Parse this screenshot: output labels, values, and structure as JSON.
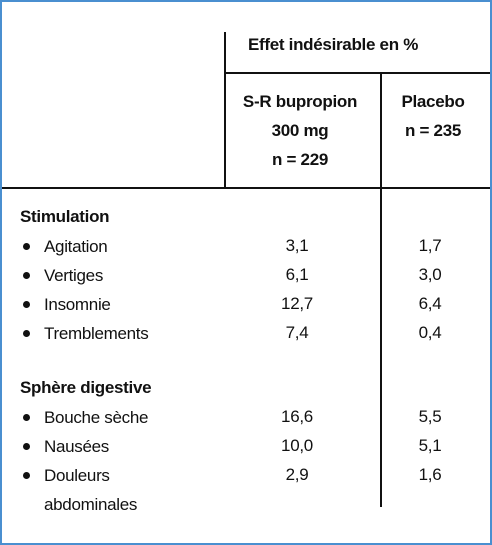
{
  "header": {
    "group": "Effet indésirable en %",
    "columns": [
      {
        "lines": [
          "S-R bupropion",
          "300 mg",
          "n = 229"
        ]
      },
      {
        "lines": [
          "Placebo",
          "n = 235"
        ]
      }
    ]
  },
  "sections": [
    {
      "title": "Stimulation",
      "rows": [
        {
          "label": "Agitation",
          "values": [
            "3,1",
            "1,7"
          ]
        },
        {
          "label": "Vertiges",
          "values": [
            "6,1",
            "3,0"
          ]
        },
        {
          "label": "Insomnie",
          "values": [
            "12,7",
            "6,4"
          ]
        },
        {
          "label": "Tremblements",
          "values": [
            "7,4",
            "0,4"
          ]
        }
      ]
    },
    {
      "title": "Sphère digestive",
      "rows": [
        {
          "label": "Bouche sèche",
          "values": [
            "16,6",
            "5,5"
          ]
        },
        {
          "label": "Nausées",
          "values": [
            "10,0",
            "5,1"
          ]
        },
        {
          "label": "Douleurs abdominales",
          "values": [
            "2,9",
            "1,6"
          ]
        }
      ]
    }
  ]
}
